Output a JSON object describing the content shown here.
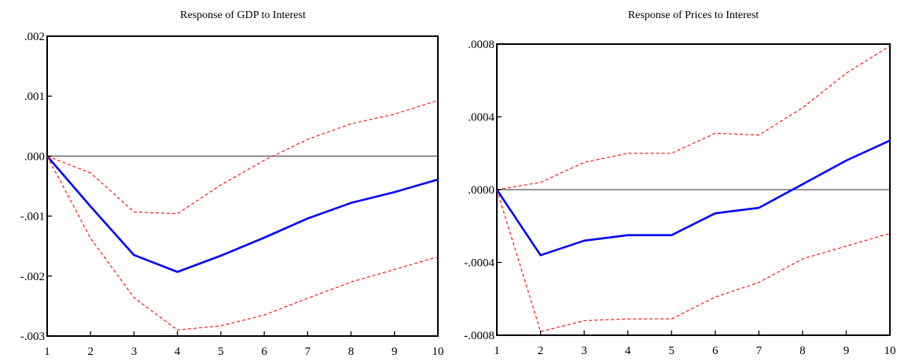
{
  "chart_data": [
    {
      "type": "line",
      "title": "Response of GDP to Interest",
      "x": [
        1,
        2,
        3,
        4,
        5,
        6,
        7,
        8,
        9,
        10
      ],
      "xlim": [
        1,
        10
      ],
      "ylim": [
        -0.003,
        0.002
      ],
      "y_ticks": [
        0.002,
        0.001,
        0.0,
        -0.001,
        -0.002,
        -0.003
      ],
      "y_tick_labels": [
        ".002",
        ".001",
        ".000",
        "-.001",
        "-.002",
        "-.003"
      ],
      "x_tick_labels": [
        "1",
        "2",
        "3",
        "4",
        "5",
        "6",
        "7",
        "8",
        "9",
        "10"
      ],
      "zero_line": true,
      "grid": false,
      "series": [
        {
          "role": "response",
          "color": "#0000ff",
          "style": "solid",
          "values": [
            0.0,
            -0.00084,
            -0.00165,
            -0.00193,
            -0.00166,
            -0.00136,
            -0.00104,
            -0.00078,
            -0.0006,
            -0.00039
          ]
        },
        {
          "role": "upper-band",
          "color": "#ff0000",
          "style": "dashed",
          "values": [
            0.0,
            -0.00028,
            -0.00093,
            -0.00096,
            -0.00048,
            -7e-05,
            0.00028,
            0.00054,
            0.0007,
            0.00093
          ]
        },
        {
          "role": "lower-band",
          "color": "#ff0000",
          "style": "dashed",
          "values": [
            0.0,
            -0.00137,
            -0.00236,
            -0.0029,
            -0.00283,
            -0.00265,
            -0.00237,
            -0.0021,
            -0.00189,
            -0.00168
          ]
        }
      ]
    },
    {
      "type": "line",
      "title": "Response of Prices to Interest",
      "x": [
        1,
        2,
        3,
        4,
        5,
        6,
        7,
        8,
        9,
        10
      ],
      "xlim": [
        1,
        10
      ],
      "ylim": [
        -0.0008,
        0.0008
      ],
      "y_ticks": [
        0.0008,
        0.0004,
        0.0,
        -0.0004,
        -0.0008
      ],
      "y_tick_labels": [
        ".0008",
        ".0004",
        ".0000",
        "-.0004",
        "-.0008"
      ],
      "x_tick_labels": [
        "1",
        "2",
        "3",
        "4",
        "5",
        "6",
        "7",
        "8",
        "9",
        "10"
      ],
      "zero_line": true,
      "grid": false,
      "series": [
        {
          "role": "response",
          "color": "#0000ff",
          "style": "solid",
          "values": [
            0.0,
            -0.00036,
            -0.00028,
            -0.00025,
            -0.00025,
            -0.00013,
            -0.0001,
            3e-05,
            0.00016,
            0.00027
          ]
        },
        {
          "role": "upper-band",
          "color": "#ff0000",
          "style": "dashed",
          "values": [
            0.0,
            4e-05,
            0.00015,
            0.0002,
            0.0002,
            0.00031,
            0.0003,
            0.00045,
            0.00064,
            0.00079
          ]
        },
        {
          "role": "lower-band",
          "color": "#ff0000",
          "style": "dashed",
          "values": [
            0.0,
            -0.00078,
            -0.00072,
            -0.00071,
            -0.00071,
            -0.00059,
            -0.00051,
            -0.00038,
            -0.00031,
            -0.00024
          ]
        }
      ]
    }
  ]
}
